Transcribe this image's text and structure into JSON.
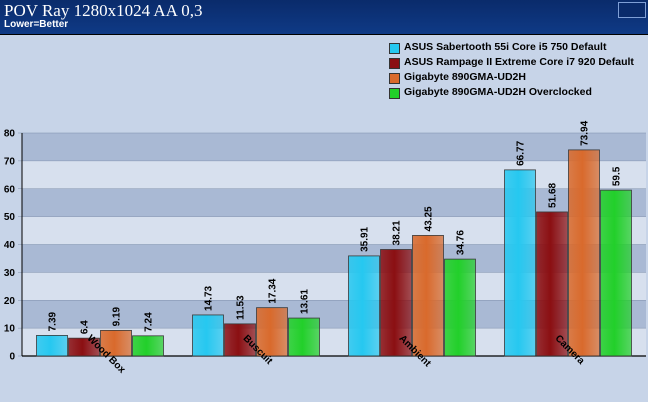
{
  "header": {
    "title": "POV Ray 1280x1024 AA 0,3",
    "subtitle": "Lower=Better"
  },
  "chart_data": {
    "type": "bar",
    "title": "POV Ray 1280x1024 AA 0,3",
    "subtitle": "Lower=Better",
    "categories": [
      "Wood Box",
      "Buscuit",
      "Ambient",
      "Camera"
    ],
    "series": [
      {
        "name": "ASUS Sabertooth 55i Core i5 750 Default",
        "color": "#26c8f0",
        "values": [
          7.39,
          14.73,
          35.91,
          66.77
        ]
      },
      {
        "name": "ASUS Rampage II Extreme Core i7 920 Default",
        "color": "#8b0f12",
        "values": [
          6.4,
          11.53,
          38.21,
          51.68
        ]
      },
      {
        "name": "Gigabyte 890GMA-UD2H",
        "color": "#d96a2c",
        "values": [
          9.19,
          17.34,
          43.25,
          73.94
        ]
      },
      {
        "name": "Gigabyte 890GMA-UD2H Overclocked",
        "color": "#22d02a",
        "values": [
          7.24,
          13.61,
          34.76,
          59.5
        ]
      }
    ],
    "y_ticks": [
      "0",
      "10",
      "20",
      "30",
      "40",
      "50",
      "60",
      "70",
      "80"
    ],
    "ylim": [
      0,
      80
    ],
    "grid": true,
    "legend_position": "top-right"
  }
}
